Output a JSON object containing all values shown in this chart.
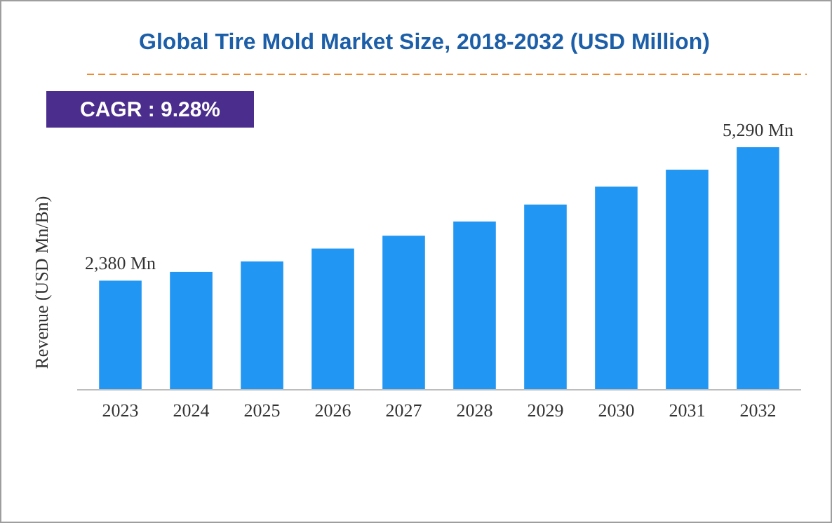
{
  "chart_data": {
    "type": "bar",
    "title": "Global Tire Mold Market Size, 2018-2032 (USD Million)",
    "ylabel": "Revenue (USD Mn/Bn)",
    "categories": [
      "2023",
      "2024",
      "2025",
      "2026",
      "2027",
      "2028",
      "2029",
      "2030",
      "2031",
      "2032"
    ],
    "values": [
      2380,
      2570,
      2800,
      3080,
      3360,
      3670,
      4040,
      4430,
      4800,
      5290
    ],
    "value_labels": [
      "2,380 Mn",
      null,
      null,
      null,
      null,
      null,
      null,
      null,
      null,
      "5,290 Mn"
    ],
    "color": "#2196f3",
    "annotations": [
      "CAGR : 9.28%"
    ]
  }
}
